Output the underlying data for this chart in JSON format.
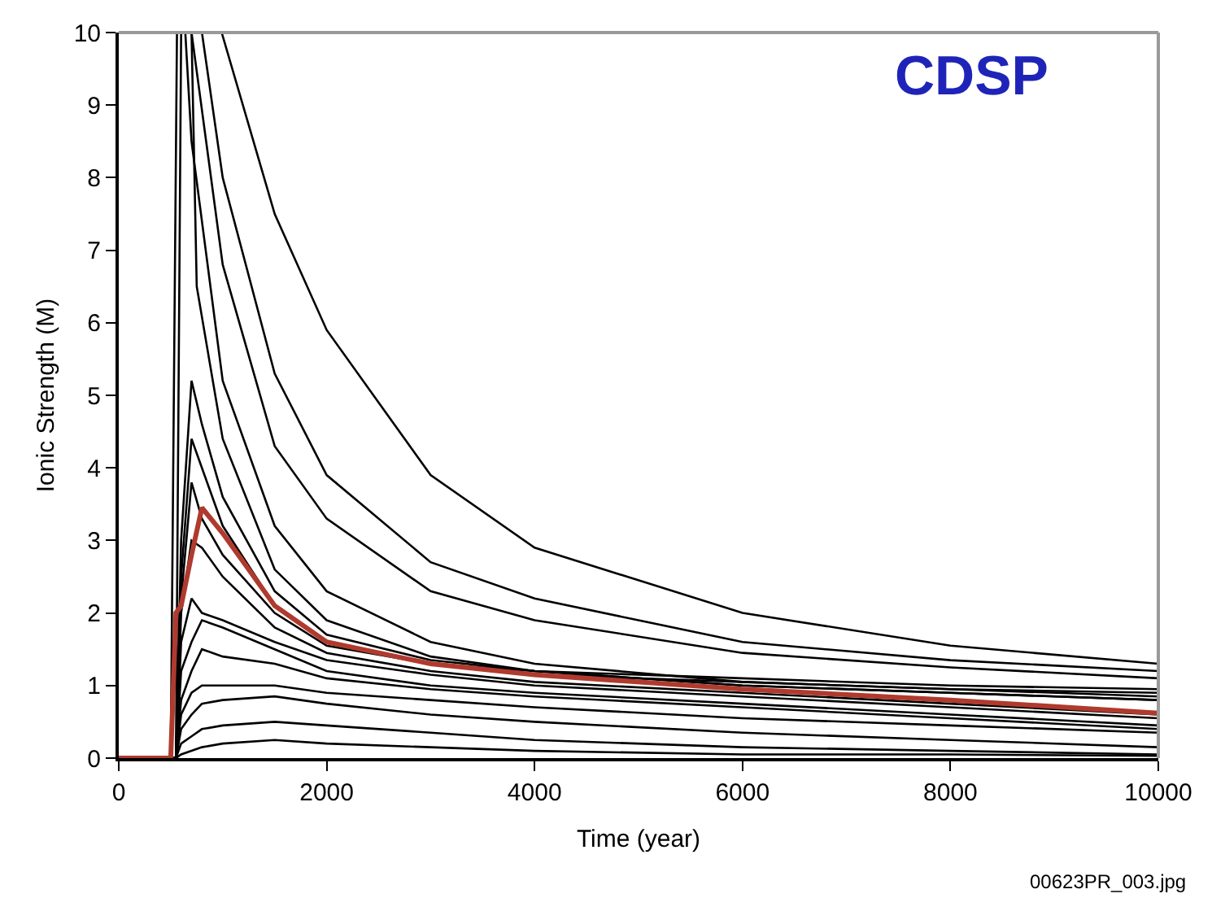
{
  "chart_data": {
    "type": "line",
    "xlabel": "Time (year)",
    "ylabel": "Ionic Strength (M)",
    "annotations": [
      "CDSP",
      "00623PR_003.jpg"
    ],
    "x": [
      0,
      500,
      550,
      600,
      700,
      800,
      1000,
      1500,
      2000,
      3000,
      4000,
      6000,
      8000,
      10000
    ],
    "xlim": [
      0,
      10000
    ],
    "xticks": [
      0,
      2000,
      4000,
      6000,
      8000,
      10000
    ],
    "ylim": [
      0,
      10
    ],
    "yticks": [
      0,
      1,
      2,
      3,
      4,
      5,
      6,
      7,
      8,
      9,
      10
    ],
    "series": [
      {
        "color": "#000000",
        "x": [
          990,
          1500,
          2000,
          3000,
          4000,
          6000,
          8000,
          10000
        ],
        "values": [
          10,
          7.5,
          5.9,
          3.9,
          2.9,
          2.0,
          1.55,
          1.3
        ]
      },
      {
        "color": "#000000",
        "x": [
          800,
          1000,
          1500,
          2000,
          3000,
          4000,
          6000,
          8000,
          10000
        ],
        "values": [
          10,
          8.0,
          5.3,
          3.9,
          2.7,
          2.2,
          1.6,
          1.35,
          1.2
        ]
      },
      {
        "color": "#000000",
        "x": [
          700,
          1000,
          1500,
          2000,
          3000,
          4000,
          6000,
          8000,
          10000
        ],
        "values": [
          10,
          6.8,
          4.3,
          3.3,
          2.3,
          1.9,
          1.45,
          1.25,
          1.1
        ]
      },
      {
        "color": "#000000",
        "x": [
          0,
          500,
          560,
          640,
          700,
          1000,
          1500,
          2000,
          3000,
          4000,
          6000,
          8000,
          10000
        ],
        "values": [
          0,
          0,
          10,
          10,
          8.5,
          5.2,
          3.2,
          2.3,
          1.6,
          1.3,
          1.05,
          0.95,
          0.85
        ]
      },
      {
        "color": "#000000",
        "x": [
          0,
          550,
          600,
          700,
          750,
          1000,
          1500,
          2000,
          3000,
          4000,
          6000,
          8000,
          10000
        ],
        "values": [
          0,
          0,
          10,
          10,
          6.5,
          4.4,
          2.6,
          1.9,
          1.4,
          1.2,
          1.0,
          0.9,
          0.8
        ]
      },
      {
        "color": "#000000",
        "values": [
          0,
          0,
          0,
          3,
          5.2,
          4.6,
          3.6,
          2.3,
          1.7,
          1.35,
          1.2,
          1.0,
          0.9,
          0.8
        ]
      },
      {
        "color": "#000000",
        "values": [
          0,
          0,
          0,
          2.5,
          4.4,
          4.0,
          3.2,
          2.1,
          1.6,
          1.3,
          1.15,
          1.05,
          0.95,
          0.9
        ]
      },
      {
        "color": "#000000",
        "values": [
          0,
          0,
          0,
          2.2,
          3.8,
          3.3,
          2.8,
          2.0,
          1.55,
          1.3,
          1.2,
          1.1,
          1.0,
          0.95
        ]
      },
      {
        "color": "#000000",
        "values": [
          0,
          0,
          0,
          2.0,
          3.0,
          2.9,
          2.5,
          1.8,
          1.45,
          1.2,
          1.05,
          0.9,
          0.75,
          0.6
        ]
      },
      {
        "color": "#000000",
        "values": [
          0,
          0,
          0,
          1.6,
          2.2,
          2.0,
          1.9,
          1.6,
          1.35,
          1.15,
          1.0,
          0.85,
          0.7,
          0.55
        ]
      },
      {
        "color": "#000000",
        "values": [
          0,
          0,
          0,
          1.2,
          1.6,
          1.9,
          1.8,
          1.5,
          1.2,
          1.0,
          0.9,
          0.75,
          0.6,
          0.45
        ]
      },
      {
        "color": "#000000",
        "values": [
          0,
          0,
          0,
          0.8,
          1.2,
          1.5,
          1.4,
          1.3,
          1.1,
          0.95,
          0.85,
          0.7,
          0.55,
          0.4
        ]
      },
      {
        "color": "#000000",
        "values": [
          0,
          0,
          0,
          0.6,
          0.9,
          1.0,
          1.0,
          1.0,
          0.9,
          0.8,
          0.7,
          0.55,
          0.45,
          0.35
        ]
      },
      {
        "color": "#000000",
        "values": [
          0,
          0,
          0,
          0.4,
          0.6,
          0.75,
          0.8,
          0.85,
          0.75,
          0.6,
          0.5,
          0.35,
          0.25,
          0.15
        ]
      },
      {
        "color": "#000000",
        "values": [
          0,
          0,
          0,
          0.2,
          0.3,
          0.4,
          0.45,
          0.5,
          0.45,
          0.35,
          0.25,
          0.15,
          0.1,
          0.05
        ]
      },
      {
        "color": "#000000",
        "values": [
          0,
          0,
          0,
          0.05,
          0.1,
          0.15,
          0.2,
          0.25,
          0.2,
          0.15,
          0.1,
          0.05,
          0.05,
          0.03
        ]
      },
      {
        "color": "#b03a2e",
        "values": [
          0,
          0,
          2.0,
          2.1,
          2.8,
          3.45,
          3.1,
          2.1,
          1.6,
          1.3,
          1.15,
          0.95,
          0.8,
          0.62
        ]
      }
    ]
  }
}
